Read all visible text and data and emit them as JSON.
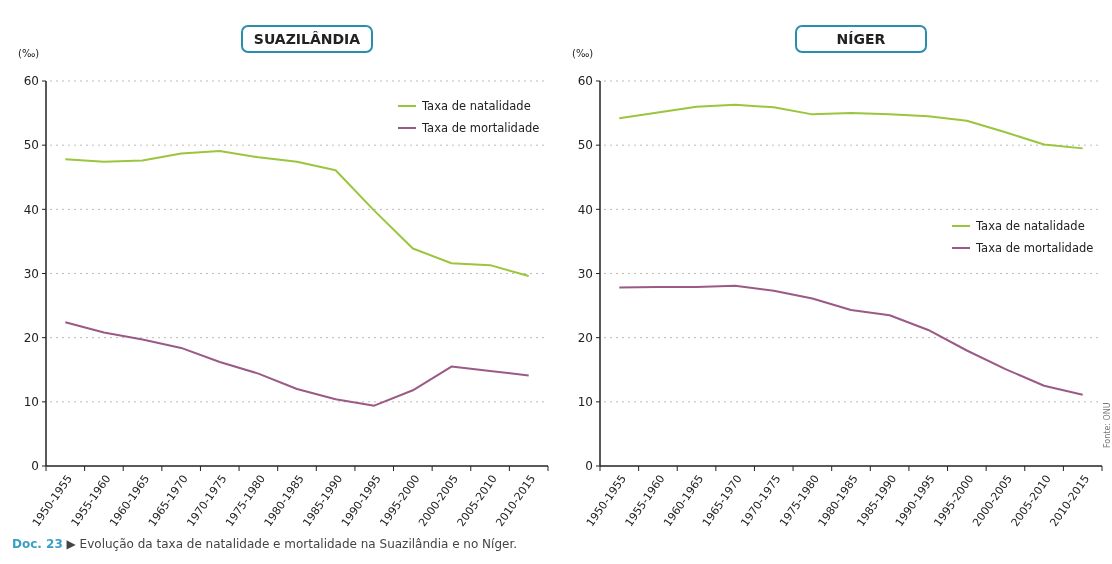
{
  "chart_data": [
    {
      "type": "line",
      "title": "SUAZILÂNDIA",
      "ylabel": "(‰)",
      "categories": [
        "1950-1955",
        "1955-1960",
        "1960-1965",
        "1965-1970",
        "1970-1975",
        "1975-1980",
        "1980-1985",
        "1985-1990",
        "1990-1995",
        "1995-2000",
        "2000-2005",
        "2005-2010",
        "2010-2015"
      ],
      "series": [
        {
          "name": "Taxa de natalidade",
          "color": "#9bc53d",
          "values": [
            47.8,
            47.4,
            47.6,
            48.7,
            49.1,
            48.1,
            47.4,
            46.1,
            39.8,
            33.9,
            31.6,
            31.3,
            29.6
          ]
        },
        {
          "name": "Taxa de mortalidade",
          "color": "#9b5a86",
          "values": [
            22.4,
            20.8,
            19.7,
            18.4,
            16.2,
            14.4,
            12.0,
            10.4,
            9.4,
            11.8,
            15.5,
            14.8,
            14.1
          ]
        }
      ],
      "ylim": [
        0,
        60
      ],
      "yticks": [
        0,
        10,
        20,
        30,
        40,
        50,
        60
      ],
      "grid": "y",
      "legend": "top right",
      "marker": "none",
      "annotations": [
        "Doc. 23 ▶ Evolução da taxa de natalidade e mortalidade na Suazilândia e no Níger."
      ]
    },
    {
      "type": "line",
      "title": "NÍGER",
      "ylabel": "(‰)",
      "categories": [
        "1950-1955",
        "1955-1960",
        "1960-1965",
        "1965-1970",
        "1970-1975",
        "1975-1980",
        "1980-1985",
        "1985-1990",
        "1990-1995",
        "1995-2000",
        "2000-2005",
        "2005-2010",
        "2010-2015"
      ],
      "series": [
        {
          "name": "Taxa de natalidade",
          "color": "#9bc53d",
          "values": [
            54.2,
            55.1,
            56.0,
            56.3,
            55.9,
            54.8,
            55.0,
            54.8,
            54.5,
            53.8,
            52.0,
            50.1,
            49.5
          ]
        },
        {
          "name": "Taxa de mortalidade",
          "color": "#9b5a86",
          "values": [
            27.8,
            27.9,
            27.9,
            28.1,
            27.3,
            26.1,
            24.3,
            23.5,
            21.2,
            18.0,
            15.1,
            12.5,
            11.1
          ]
        }
      ],
      "ylim": [
        0,
        60
      ],
      "yticks": [
        0,
        10,
        20,
        30,
        40,
        50,
        60
      ],
      "grid": "y",
      "legend": "right",
      "marker": "none",
      "annotations": [
        "Fonte: ONU"
      ]
    }
  ]
}
